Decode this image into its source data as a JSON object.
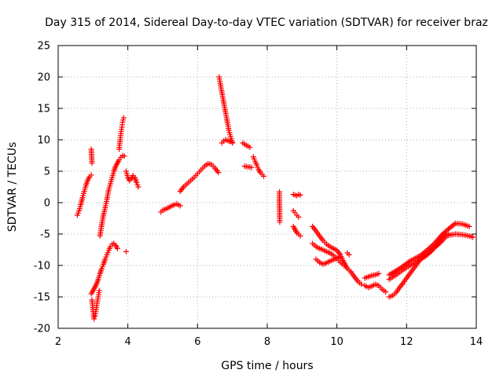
{
  "chart_data": {
    "type": "scatter",
    "title": "Day 315 of 2014, Sidereal Day-to-day VTEC variation (SDTVAR) for receiver braz",
    "xlabel": "GPS time / hours",
    "ylabel": "SDTVAR / TECUs",
    "xlim": [
      2,
      14
    ],
    "ylim": [
      -20,
      25
    ],
    "xticks": [
      "2",
      "4",
      "6",
      "8",
      "10",
      "12",
      "14"
    ],
    "yticks": [
      "-20",
      "-15",
      "-10",
      "-5",
      "0",
      "5",
      "10",
      "15",
      "20",
      "25"
    ],
    "grid": true,
    "marker": "plus",
    "color": "#ff0000",
    "series": [
      {
        "name": "s1",
        "x": [
          2.55,
          2.6,
          2.65,
          2.7,
          2.75,
          2.8,
          2.85,
          2.9,
          2.95
        ],
        "y": [
          -2,
          -1.3,
          -0.3,
          0.8,
          1.8,
          2.8,
          3.6,
          4.1,
          4.4
        ]
      },
      {
        "name": "s2",
        "x": [
          2.95,
          2.97
        ],
        "y": [
          8.5,
          6.3
        ]
      },
      {
        "name": "s3",
        "x": [
          3.2,
          3.25,
          3.3,
          3.35,
          3.4,
          3.45,
          3.5,
          3.55,
          3.6,
          3.65,
          3.7,
          3.75,
          3.8,
          3.85,
          3.9
        ],
        "y": [
          -5.3,
          -3.5,
          -2,
          -0.8,
          0.5,
          2,
          3,
          4,
          5,
          5.8,
          6.3,
          6.8,
          7.2,
          7.5,
          7.4
        ]
      },
      {
        "name": "s4",
        "x": [
          3.75,
          3.78,
          3.8,
          3.83,
          3.85,
          3.88
        ],
        "y": [
          8.5,
          10,
          11,
          12,
          12.8,
          13.5
        ]
      },
      {
        "name": "s5",
        "x": [
          3.95,
          4.0,
          4.05,
          4.1,
          4.15,
          4.2,
          4.25,
          4.3
        ],
        "y": [
          5,
          4,
          3.5,
          3.8,
          4.3,
          4,
          3.2,
          2.5
        ]
      },
      {
        "name": "s6",
        "x": [
          2.95,
          3.0,
          3.05,
          3.1,
          3.15,
          3.2,
          3.25,
          3.3,
          3.35,
          3.4,
          3.45,
          3.5,
          3.55,
          3.6,
          3.65,
          3.7
        ],
        "y": [
          -14.5,
          -14,
          -13.5,
          -13,
          -12.2,
          -11.3,
          -10.5,
          -9.8,
          -9,
          -8.3,
          -7.6,
          -7,
          -6.6,
          -6.5,
          -6.8,
          -7.3
        ]
      },
      {
        "name": "s7",
        "x": [
          2.97,
          3.0,
          3.03,
          3.06,
          3.09,
          3.12,
          3.15,
          3.18
        ],
        "y": [
          -15.5,
          -17,
          -18.5,
          -18,
          -17,
          -16,
          -15,
          -14
        ]
      },
      {
        "name": "s8",
        "x": [
          3.95
        ],
        "y": [
          -7.8
        ]
      },
      {
        "name": "s9",
        "x": [
          4.95,
          5.0,
          5.1,
          5.2,
          5.3,
          5.4,
          5.5
        ],
        "y": [
          -1.5,
          -1.2,
          -1,
          -0.7,
          -0.4,
          -0.2,
          -0.5
        ]
      },
      {
        "name": "s10",
        "x": [
          5.5,
          5.6,
          5.7,
          5.8,
          5.9,
          6.0,
          6.1,
          6.2,
          6.3,
          6.4,
          6.5,
          6.6
        ],
        "y": [
          1.8,
          2.5,
          3,
          3.5,
          4,
          4.6,
          5.2,
          5.8,
          6.2,
          6.1,
          5.5,
          4.8
        ]
      },
      {
        "name": "s11",
        "x": [
          6.62,
          6.65,
          6.7,
          6.75,
          6.8,
          6.85,
          6.9,
          6.95,
          7.0
        ],
        "y": [
          20,
          19,
          17.5,
          16,
          14.5,
          13,
          11.5,
          10.5,
          9.5
        ]
      },
      {
        "name": "s12",
        "x": [
          6.7,
          6.75,
          6.8,
          6.9,
          7.0
        ],
        "y": [
          9.5,
          9.8,
          10,
          9.8,
          9.6
        ]
      },
      {
        "name": "s13",
        "x": [
          7.3,
          7.35,
          7.4,
          7.45,
          7.5
        ],
        "y": [
          9.5,
          9.3,
          9.1,
          9,
          8.8
        ]
      },
      {
        "name": "s14",
        "x": [
          7.35,
          7.45,
          7.55
        ],
        "y": [
          5.8,
          5.7,
          5.6
        ]
      },
      {
        "name": "s15",
        "x": [
          7.6,
          7.65,
          7.7,
          7.75,
          7.8,
          7.85,
          7.9
        ],
        "y": [
          7.3,
          6.6,
          6,
          5.3,
          4.8,
          4.5,
          4.2
        ]
      },
      {
        "name": "s16",
        "x": [
          8.35,
          8.35,
          8.36
        ],
        "y": [
          1.7,
          0,
          -3.1
        ]
      },
      {
        "name": "s17",
        "x": [
          8.75,
          8.8,
          8.85,
          8.9,
          8.95
        ],
        "y": [
          1.3,
          1.2,
          1.1,
          1.3,
          1.2
        ]
      },
      {
        "name": "s18",
        "x": [
          8.75,
          8.8,
          8.85,
          8.9
        ],
        "y": [
          -1.3,
          -1.6,
          -2,
          -2.3
        ]
      },
      {
        "name": "s19",
        "x": [
          8.75,
          8.8,
          8.85,
          8.9,
          8.95
        ],
        "y": [
          -3.8,
          -4.3,
          -4.8,
          -5,
          -5.3
        ]
      },
      {
        "name": "s20",
        "x": [
          9.3,
          9.4,
          9.5,
          9.6,
          9.7,
          9.8,
          9.9,
          10.0,
          10.1,
          10.2,
          10.3,
          10.4,
          10.5,
          10.6,
          10.7
        ],
        "y": [
          -3.8,
          -4.5,
          -5.3,
          -6,
          -6.6,
          -7,
          -7.3,
          -7.6,
          -8.3,
          -9.5,
          -10.5,
          -11,
          -11.8,
          -12.5,
          -13
        ]
      },
      {
        "name": "s21",
        "x": [
          9.3,
          9.4,
          9.5,
          9.6,
          9.7,
          9.8,
          9.9,
          10.0,
          10.1,
          10.2
        ],
        "y": [
          -6.5,
          -7,
          -7.3,
          -7.5,
          -7.8,
          -8,
          -8.4,
          -8.9,
          -9.5,
          -10
        ]
      },
      {
        "name": "s22",
        "x": [
          9.4,
          9.5,
          9.6,
          9.7,
          9.8,
          9.9,
          10.0,
          10.1
        ],
        "y": [
          -9,
          -9.5,
          -9.8,
          -9.6,
          -9.3,
          -9.1,
          -8.8,
          -8.6
        ]
      },
      {
        "name": "s23",
        "x": [
          10.3,
          10.35
        ],
        "y": [
          -8,
          -8.3
        ]
      },
      {
        "name": "s24",
        "x": [
          10.8,
          10.9,
          11.0,
          11.1,
          11.2,
          11.3,
          11.4
        ],
        "y": [
          -13.2,
          -13.5,
          -13.3,
          -13,
          -13.2,
          -13.8,
          -14.2
        ]
      },
      {
        "name": "s25",
        "x": [
          10.8,
          10.9,
          11.0,
          11.1,
          11.2
        ],
        "y": [
          -12,
          -11.8,
          -11.6,
          -11.5,
          -11.3
        ]
      },
      {
        "name": "s26",
        "x": [
          11.5,
          11.6,
          11.7,
          11.8,
          11.9,
          12.0,
          12.2,
          12.4,
          12.6,
          12.8,
          13.0,
          13.2
        ],
        "y": [
          -15,
          -14.8,
          -14.3,
          -13.5,
          -12.8,
          -12,
          -10.5,
          -9,
          -8,
          -7.2,
          -6.2,
          -5
        ]
      },
      {
        "name": "s27",
        "x": [
          11.5,
          11.7,
          11.9,
          12.1,
          12.3,
          12.5,
          12.7,
          12.9,
          13.1
        ],
        "y": [
          -12.2,
          -11.5,
          -10.7,
          -10,
          -9.3,
          -8.7,
          -7.8,
          -6.5,
          -5
        ]
      },
      {
        "name": "s28",
        "x": [
          11.5,
          11.8,
          12.1,
          12.4,
          12.6,
          12.8,
          13.0,
          13.2,
          13.4,
          13.6,
          13.8
        ],
        "y": [
          -11.5,
          -10.5,
          -9.3,
          -8.4,
          -7.5,
          -6.5,
          -5.2,
          -4.2,
          -3.3,
          -3.4,
          -3.8
        ]
      },
      {
        "name": "s29",
        "x": [
          13.2,
          13.4,
          13.6,
          13.8,
          13.9
        ],
        "y": [
          -5.2,
          -5,
          -5.1,
          -5.3,
          -5.5
        ]
      }
    ]
  }
}
